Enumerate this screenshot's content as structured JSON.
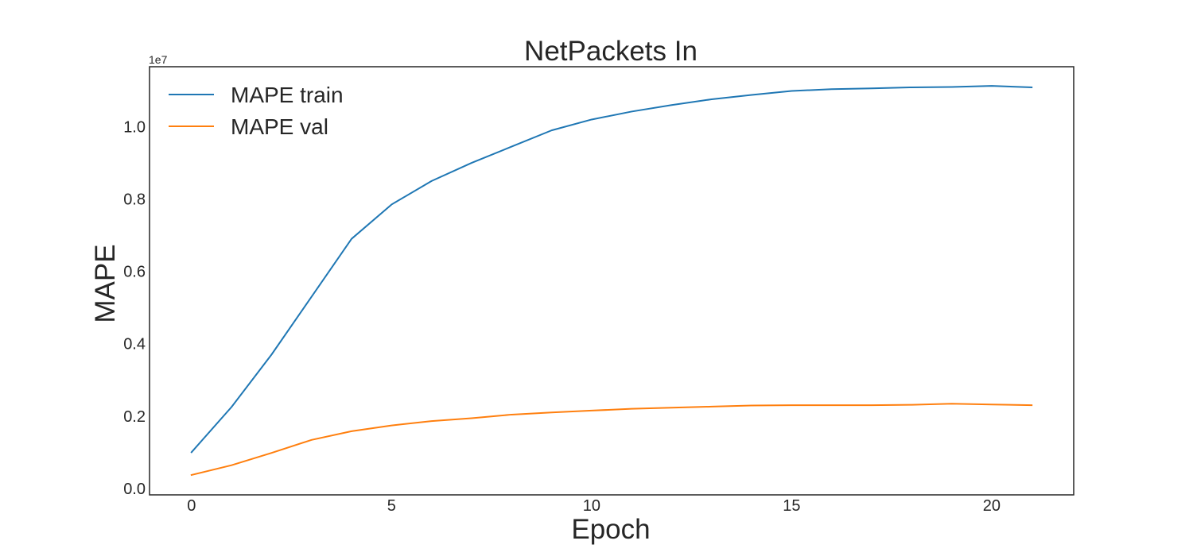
{
  "chart_data": {
    "type": "line",
    "title": "NetPackets In",
    "xlabel": "Epoch",
    "ylabel": "MAPE",
    "y_offset_label": "1e7",
    "y_scale": 10000000,
    "xlim": [
      -1.05,
      22.05
    ],
    "ylim": [
      -0.018,
      1.166
    ],
    "x_ticks": [
      0,
      5,
      10,
      15,
      20
    ],
    "x_tick_labels": [
      "0",
      "5",
      "10",
      "15",
      "20"
    ],
    "y_ticks": [
      0.0,
      0.2,
      0.4,
      0.6,
      0.8,
      1.0
    ],
    "y_tick_labels": [
      "0.0",
      "0.2",
      "0.4",
      "0.6",
      "0.8",
      "1.0"
    ],
    "grid": false,
    "legend_position": "top-left",
    "x": [
      0,
      1,
      2,
      3,
      4,
      5,
      6,
      7,
      8,
      9,
      10,
      11,
      12,
      13,
      14,
      15,
      16,
      17,
      18,
      19,
      20,
      21
    ],
    "series": [
      {
        "name": "MAPE train",
        "color": "#1f77b4",
        "values": [
          0.1,
          0.225,
          0.37,
          0.53,
          0.69,
          0.785,
          0.85,
          0.9,
          0.945,
          0.99,
          1.02,
          1.042,
          1.06,
          1.076,
          1.088,
          1.099,
          1.104,
          1.106,
          1.109,
          1.11,
          1.113,
          1.109
        ]
      },
      {
        "name": "MAPE val",
        "color": "#ff7f0e",
        "values": [
          0.037,
          0.064,
          0.098,
          0.134,
          0.158,
          0.174,
          0.186,
          0.194,
          0.204,
          0.21,
          0.215,
          0.22,
          0.223,
          0.226,
          0.229,
          0.23,
          0.23,
          0.23,
          0.231,
          0.234,
          0.232,
          0.23
        ]
      }
    ]
  }
}
